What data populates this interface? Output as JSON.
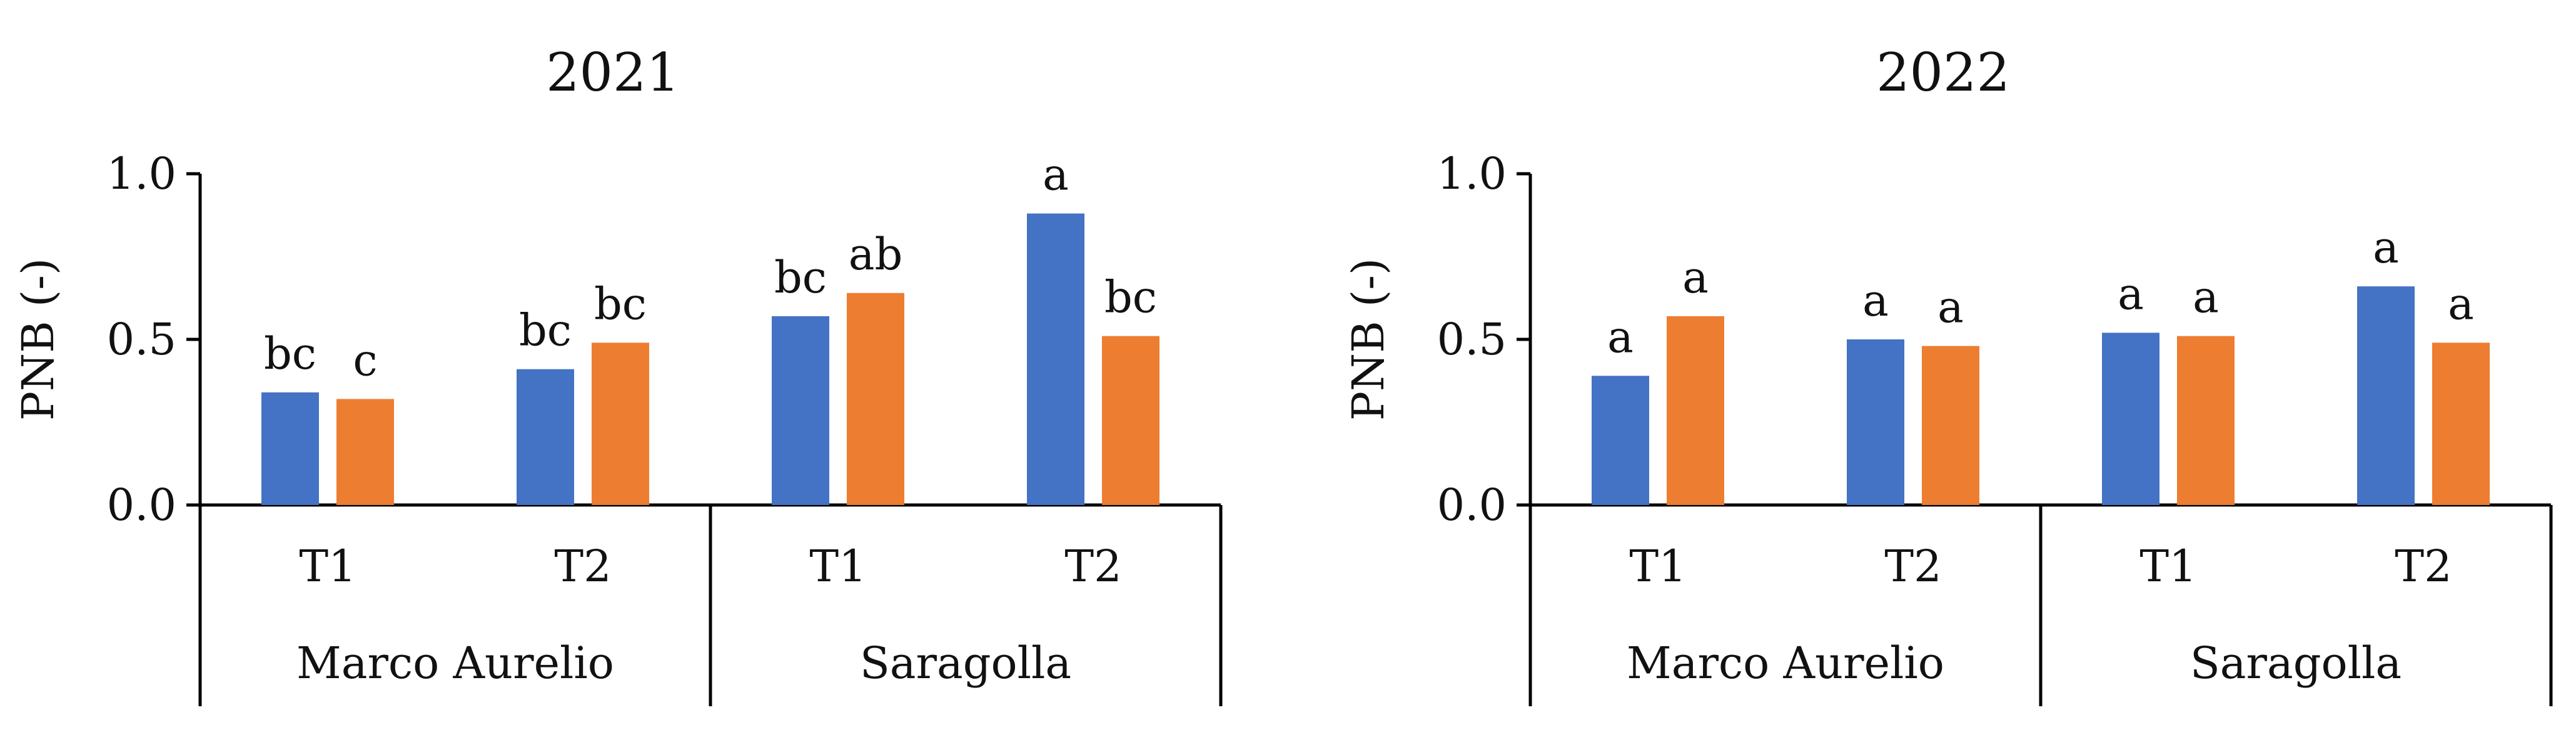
{
  "chart_data": [
    {
      "type": "bar",
      "title": "2021",
      "ylabel": "PNB (-)",
      "xlabel": "",
      "ylim": [
        0,
        1.0
      ],
      "yticks": [
        "0.0",
        "0.5",
        "1.0"
      ],
      "groups": [
        "Marco Aurelio",
        "Saragolla"
      ],
      "categories": [
        "T1",
        "T2",
        "T1",
        "T2"
      ],
      "series": [
        {
          "name": "series 1",
          "color": "#4472C4",
          "values": [
            0.34,
            0.41,
            0.57,
            0.88
          ],
          "labels": [
            "bc",
            "bc",
            "bc",
            "a"
          ]
        },
        {
          "name": "series 2",
          "color": "#ED7D31",
          "values": [
            0.32,
            0.49,
            0.64,
            0.51
          ],
          "labels": [
            "c",
            "bc",
            "ab",
            "bc"
          ]
        }
      ]
    },
    {
      "type": "bar",
      "title": "2022",
      "ylabel": "PNB (-)",
      "xlabel": "",
      "ylim": [
        0,
        1.0
      ],
      "yticks": [
        "0.0",
        "0.5",
        "1.0"
      ],
      "groups": [
        "Marco Aurelio",
        "Saragolla"
      ],
      "categories": [
        "T1",
        "T2",
        "T1",
        "T2"
      ],
      "series": [
        {
          "name": "series 1",
          "color": "#4472C4",
          "values": [
            0.39,
            0.5,
            0.52,
            0.66
          ],
          "labels": [
            "a",
            "a",
            "a",
            "a"
          ]
        },
        {
          "name": "series 2",
          "color": "#ED7D31",
          "values": [
            0.57,
            0.48,
            0.51,
            0.49
          ],
          "labels": [
            "a",
            "a",
            "a",
            "a"
          ]
        }
      ]
    }
  ]
}
